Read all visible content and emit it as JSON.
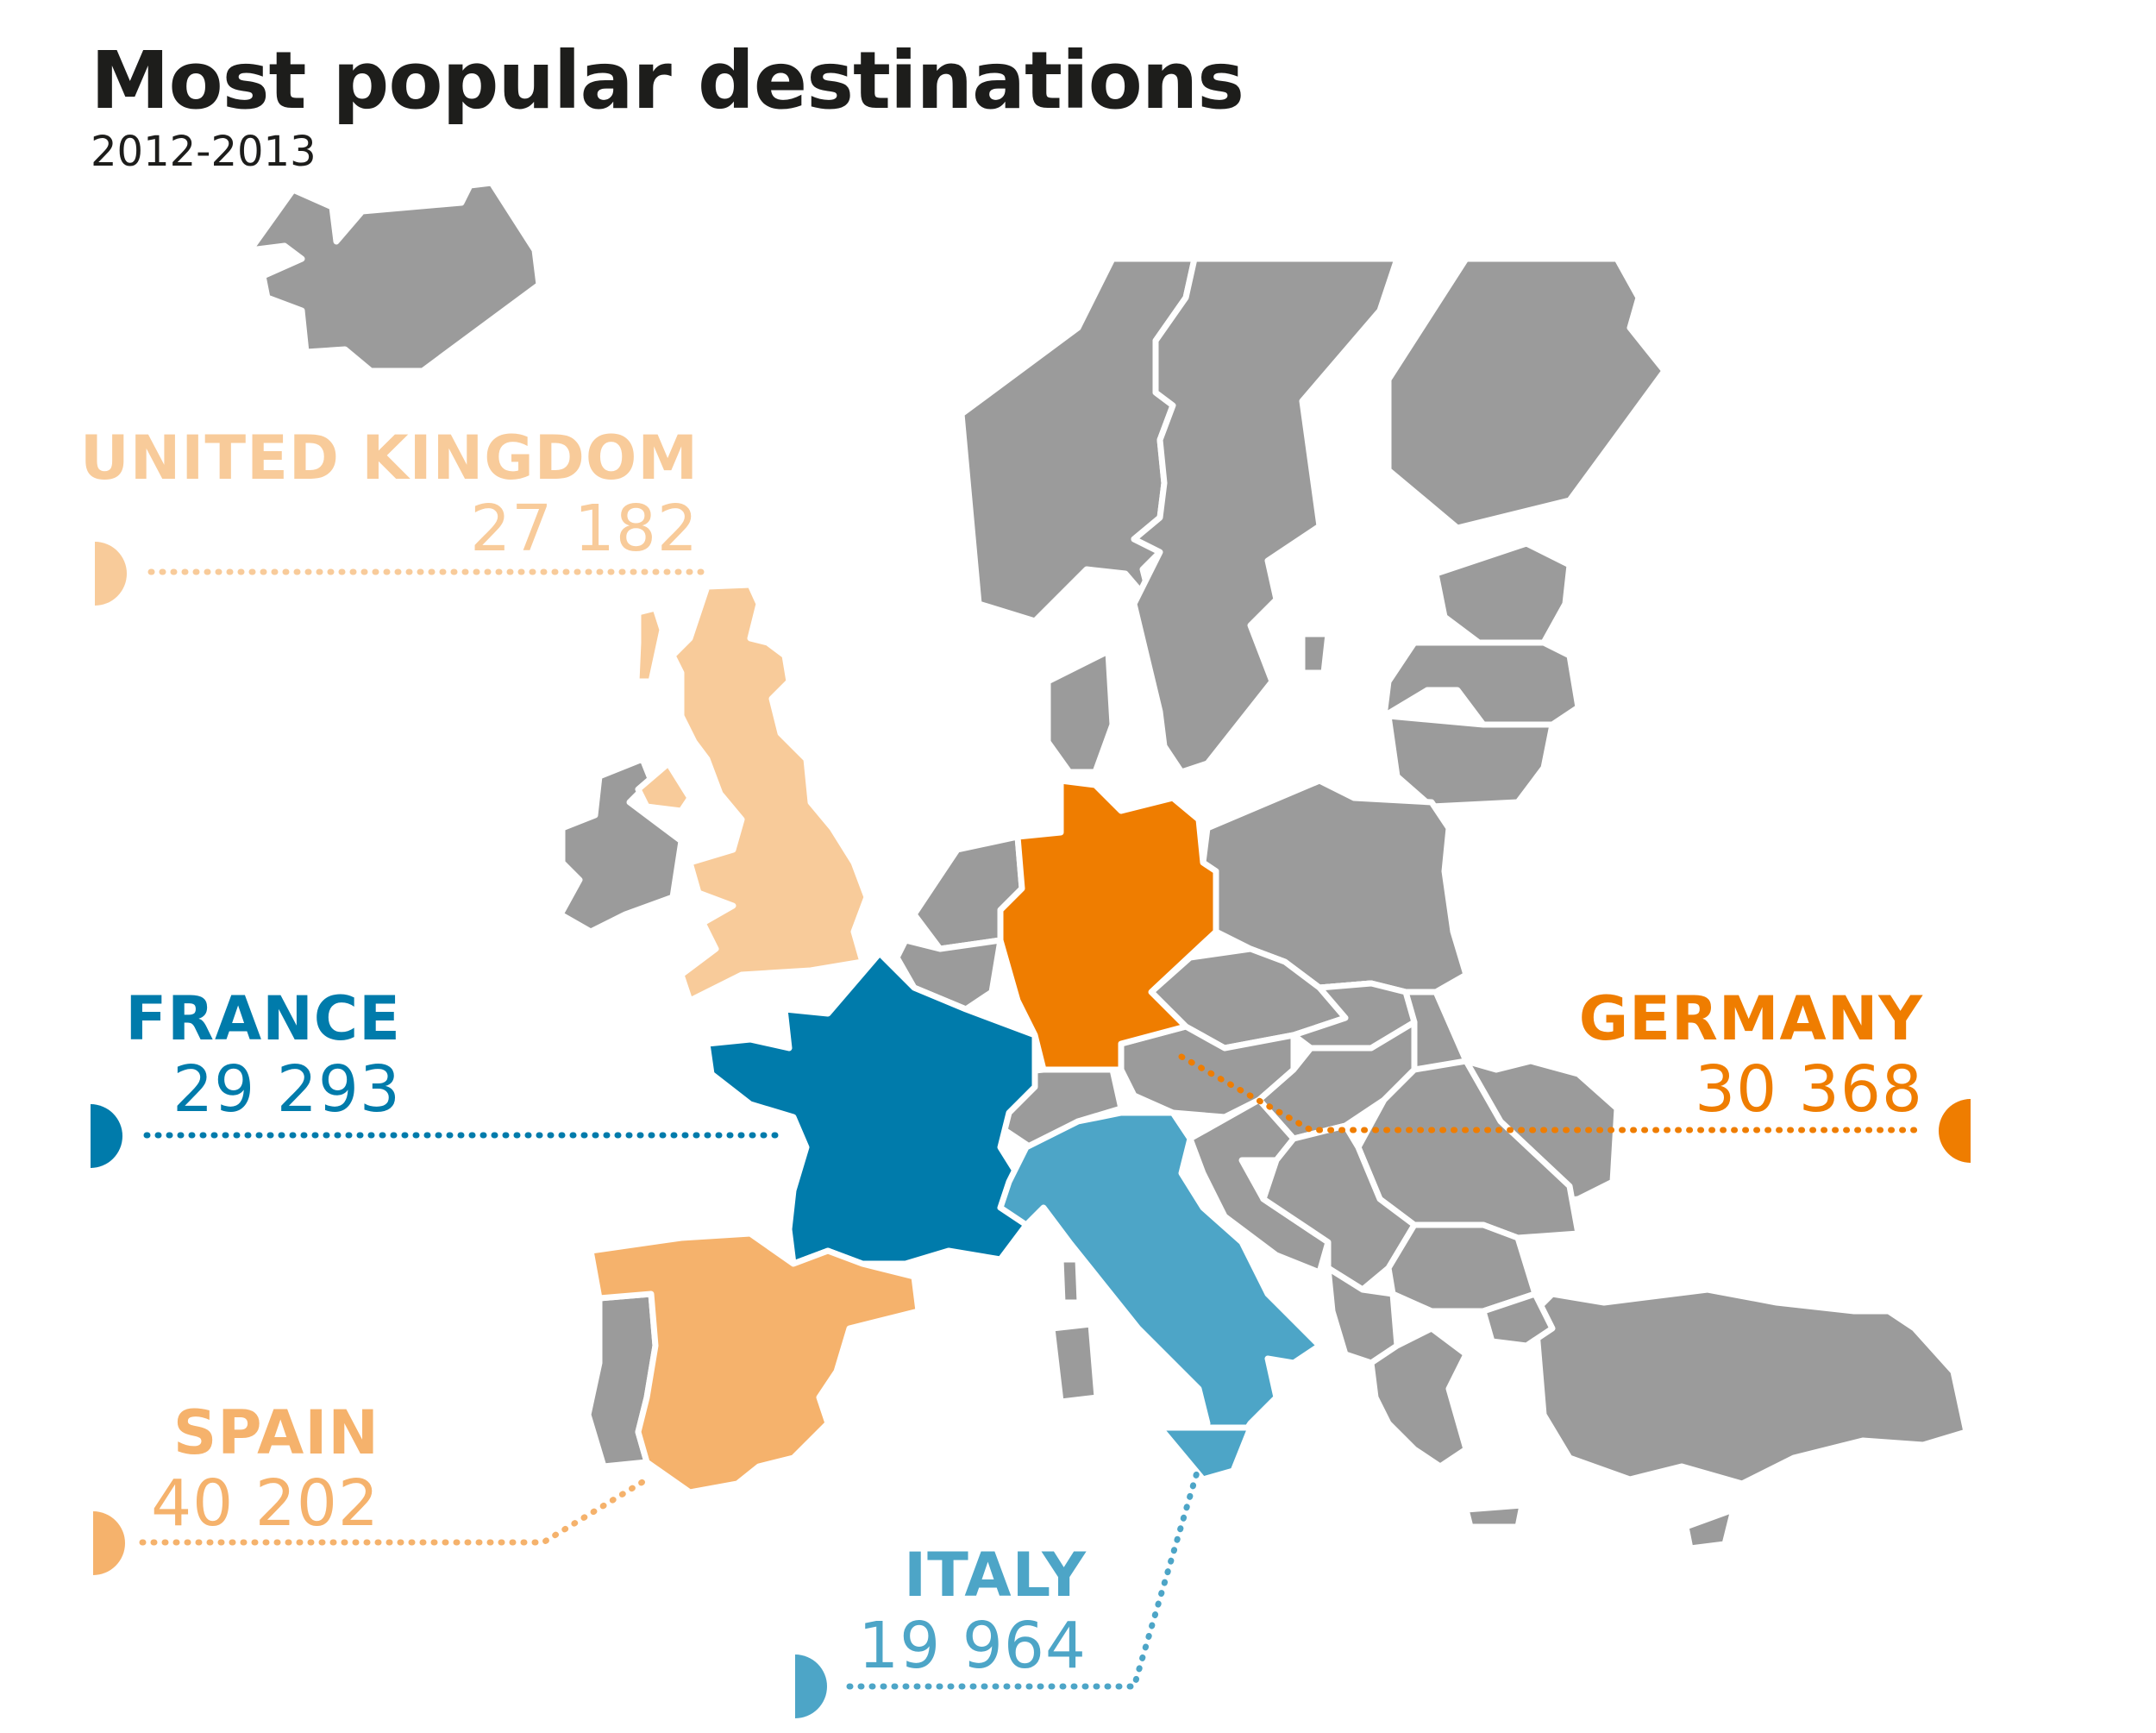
{
  "title": "Most popular destinations",
  "subtitle": "2012-2013",
  "colors": {
    "neutral": "#9b9b9b",
    "united_kingdom": "#f8cb9a",
    "france": "#007bab",
    "germany": "#ef7d00",
    "spain": "#f5b26c",
    "italy": "#4da5c7"
  },
  "destinations": [
    {
      "key": "united_kingdom",
      "name": "UNITED KINGDOM",
      "value": "27 182"
    },
    {
      "key": "france",
      "name": "FRANCE",
      "value": "29 293"
    },
    {
      "key": "germany",
      "name": "GERMANY",
      "value": "30 368"
    },
    {
      "key": "spain",
      "name": "SPAIN",
      "value": "40 202"
    },
    {
      "key": "italy",
      "name": "ITALY",
      "value": "19 964"
    }
  ]
}
